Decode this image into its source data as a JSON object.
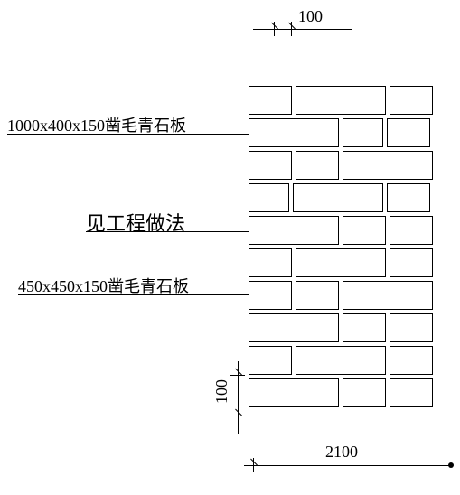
{
  "dimensions": {
    "top_offset": "100",
    "bottom_width": "2100",
    "left_gap": "100"
  },
  "labels": {
    "stone_large": "1000x400x150凿毛青石板",
    "method_ref": "见工程做法",
    "stone_small": "450x450x150凿毛青石板"
  },
  "styling": {
    "line_color": "#000000",
    "background": "#ffffff",
    "font_size_label": 18,
    "font_size_dim": 18,
    "brick_border": "1px solid #000",
    "brick_gap": 4
  },
  "brick_pattern": {
    "rows": [
      [
        "half",
        "large",
        "half"
      ],
      [
        "large",
        "small",
        "half"
      ],
      [
        "half",
        "half",
        "large"
      ],
      [
        "small",
        "large",
        "half"
      ],
      [
        "large",
        "half",
        "half"
      ],
      [
        "half",
        "large",
        "half"
      ],
      [
        "half",
        "half",
        "large"
      ],
      [
        "large",
        "half",
        "half"
      ],
      [
        "half",
        "large",
        "half"
      ],
      [
        "large",
        "half",
        "half"
      ]
    ]
  }
}
